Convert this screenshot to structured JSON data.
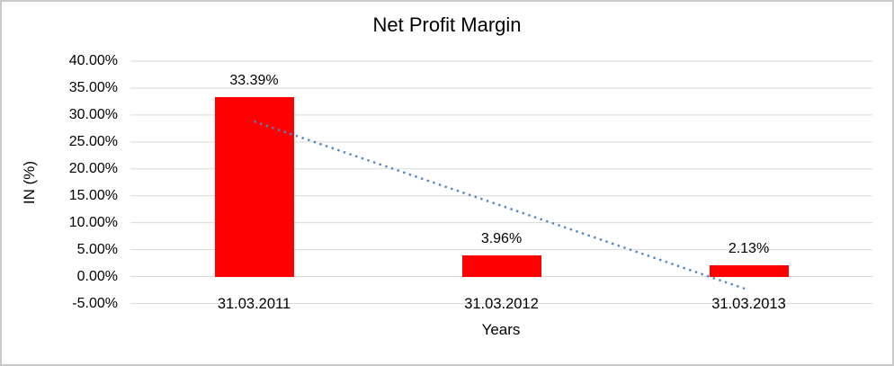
{
  "chart_data": {
    "type": "bar",
    "title": "Net Profit Margin",
    "xlabel": "Years",
    "ylabel": "IN (%)",
    "categories": [
      "31.03.2011",
      "31.03.2012",
      "31.03.2013"
    ],
    "values": [
      33.39,
      3.96,
      2.13
    ],
    "data_labels": [
      "33.39%",
      "3.96%",
      "2.13%"
    ],
    "ylim": [
      -5,
      40
    ],
    "ytick_step": 5,
    "ytick_labels": [
      "40.00%",
      "35.00%",
      "30.00%",
      "25.00%",
      "20.00%",
      "15.00%",
      "10.00%",
      "5.00%",
      "0.00%",
      "-5.00%"
    ],
    "grid": true,
    "legend": "none",
    "colors": {
      "bar": "#ff0000",
      "gridline": "#d9d9d9",
      "trendline": "#4e86c6",
      "text": "#000000",
      "background": "#ffffff",
      "border": "#c9c9c9"
    },
    "trendline": {
      "style": "dotted",
      "start_value": 28.8,
      "end_value": -2.5
    }
  }
}
